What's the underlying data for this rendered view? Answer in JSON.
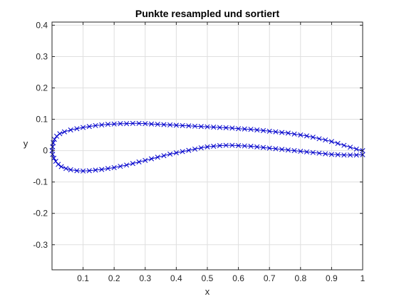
{
  "chart_data": {
    "type": "line",
    "title": "Punkte resampled und sortiert",
    "xlabel": "x",
    "ylabel": "y",
    "xlim": [
      0,
      1
    ],
    "ylim": [
      -0.38,
      0.41
    ],
    "x_ticks": [
      0.1,
      0.2,
      0.3,
      0.4,
      0.5,
      0.6,
      0.7,
      0.8,
      0.9,
      1
    ],
    "x_tick_labels": [
      "0.1",
      "0.2",
      "0.3",
      "0.4",
      "0.5",
      "0.6",
      "0.7",
      "0.8",
      "0.9",
      "1"
    ],
    "y_ticks": [
      0.4,
      0.3,
      0.2,
      0.1,
      0,
      -0.1,
      -0.2,
      -0.3
    ],
    "y_tick_labels": [
      "0.4",
      "0.3",
      "0.2",
      "0.1",
      "0",
      "-0.1",
      "-0.2",
      "-0.3"
    ],
    "grid": true,
    "marker": "x",
    "colors": {
      "series": "#0000cc",
      "grid": "#dfdfdf",
      "axes": "#262626"
    },
    "series": [
      {
        "points": [
          [
            1.0,
            0.0
          ],
          [
            0.98,
            0.005
          ],
          [
            0.96,
            0.011
          ],
          [
            0.94,
            0.017
          ],
          [
            0.92,
            0.023
          ],
          [
            0.9,
            0.029
          ],
          [
            0.88,
            0.034
          ],
          [
            0.86,
            0.038
          ],
          [
            0.84,
            0.043
          ],
          [
            0.82,
            0.047
          ],
          [
            0.8,
            0.05
          ],
          [
            0.78,
            0.053
          ],
          [
            0.76,
            0.056
          ],
          [
            0.74,
            0.058
          ],
          [
            0.72,
            0.06
          ],
          [
            0.7,
            0.062
          ],
          [
            0.68,
            0.064
          ],
          [
            0.66,
            0.066
          ],
          [
            0.64,
            0.068
          ],
          [
            0.62,
            0.069
          ],
          [
            0.6,
            0.07
          ],
          [
            0.58,
            0.072
          ],
          [
            0.56,
            0.073
          ],
          [
            0.54,
            0.074
          ],
          [
            0.52,
            0.075
          ],
          [
            0.5,
            0.076
          ],
          [
            0.48,
            0.077
          ],
          [
            0.46,
            0.078
          ],
          [
            0.44,
            0.079
          ],
          [
            0.42,
            0.08
          ],
          [
            0.4,
            0.081
          ],
          [
            0.38,
            0.082
          ],
          [
            0.36,
            0.083
          ],
          [
            0.34,
            0.084
          ],
          [
            0.32,
            0.085
          ],
          [
            0.3,
            0.086
          ],
          [
            0.28,
            0.087
          ],
          [
            0.26,
            0.087
          ],
          [
            0.24,
            0.086
          ],
          [
            0.22,
            0.086
          ],
          [
            0.2,
            0.085
          ],
          [
            0.18,
            0.084
          ],
          [
            0.16,
            0.082
          ],
          [
            0.14,
            0.08
          ],
          [
            0.12,
            0.077
          ],
          [
            0.1,
            0.074
          ],
          [
            0.08,
            0.07
          ],
          [
            0.06,
            0.066
          ],
          [
            0.04,
            0.06
          ],
          [
            0.025,
            0.054
          ],
          [
            0.015,
            0.046
          ],
          [
            0.008,
            0.036
          ],
          [
            0.004,
            0.025
          ],
          [
            0.002,
            0.012
          ],
          [
            0.0,
            0.0
          ],
          [
            0.002,
            -0.012
          ],
          [
            0.006,
            -0.024
          ],
          [
            0.012,
            -0.034
          ],
          [
            0.02,
            -0.044
          ],
          [
            0.03,
            -0.051
          ],
          [
            0.045,
            -0.057
          ],
          [
            0.06,
            -0.061
          ],
          [
            0.08,
            -0.064
          ],
          [
            0.1,
            -0.065
          ],
          [
            0.12,
            -0.064
          ],
          [
            0.14,
            -0.062
          ],
          [
            0.16,
            -0.06
          ],
          [
            0.18,
            -0.057
          ],
          [
            0.2,
            -0.054
          ],
          [
            0.22,
            -0.05
          ],
          [
            0.24,
            -0.046
          ],
          [
            0.26,
            -0.041
          ],
          [
            0.28,
            -0.036
          ],
          [
            0.3,
            -0.031
          ],
          [
            0.32,
            -0.026
          ],
          [
            0.34,
            -0.021
          ],
          [
            0.36,
            -0.016
          ],
          [
            0.38,
            -0.011
          ],
          [
            0.4,
            -0.007
          ],
          [
            0.42,
            -0.003
          ],
          [
            0.44,
            0.001
          ],
          [
            0.46,
            0.005
          ],
          [
            0.48,
            0.009
          ],
          [
            0.5,
            0.012
          ],
          [
            0.52,
            0.014
          ],
          [
            0.54,
            0.016
          ],
          [
            0.56,
            0.017
          ],
          [
            0.58,
            0.017
          ],
          [
            0.6,
            0.016
          ],
          [
            0.62,
            0.015
          ],
          [
            0.64,
            0.014
          ],
          [
            0.66,
            0.012
          ],
          [
            0.68,
            0.01
          ],
          [
            0.7,
            0.008
          ],
          [
            0.72,
            0.006
          ],
          [
            0.74,
            0.004
          ],
          [
            0.76,
            0.002
          ],
          [
            0.78,
            0.0
          ],
          [
            0.8,
            -0.002
          ],
          [
            0.82,
            -0.004
          ],
          [
            0.84,
            -0.006
          ],
          [
            0.86,
            -0.008
          ],
          [
            0.88,
            -0.01
          ],
          [
            0.9,
            -0.012
          ],
          [
            0.92,
            -0.013
          ],
          [
            0.94,
            -0.014
          ],
          [
            0.96,
            -0.014
          ],
          [
            0.98,
            -0.014
          ],
          [
            1.0,
            -0.013
          ]
        ]
      }
    ]
  }
}
